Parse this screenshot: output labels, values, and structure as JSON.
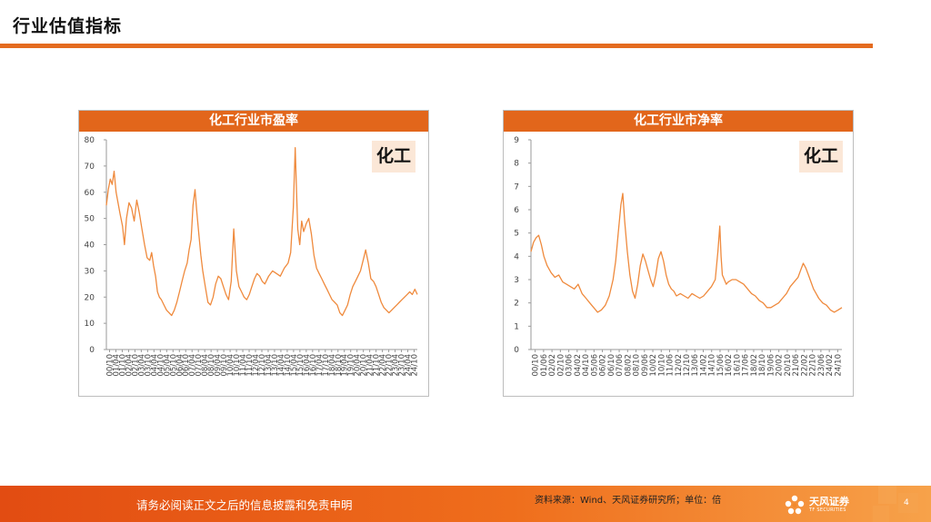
{
  "page": {
    "title": "行业估值指标"
  },
  "colors": {
    "accent": "#e46b1f",
    "line": "#ef8a3d",
    "header": "#e2661b"
  },
  "footer": {
    "disclaimer": "请务必阅读正文之后的信息披露和免责申明",
    "source": "资料来源：Wind、天风证券研究所；单位：倍",
    "logo_cn": "天风证券",
    "logo_en": "TF SECURITIES",
    "page_number": "4"
  },
  "chart_data": [
    {
      "type": "line",
      "title": "化工行业市盈率",
      "tag": "化工",
      "ylim": [
        0,
        80
      ],
      "yticks": [
        0,
        10,
        20,
        30,
        40,
        50,
        60,
        70,
        80
      ],
      "xlim": [
        2000.75,
        2024.79
      ],
      "grid": false,
      "xtick_labels": [
        "00/10",
        "01/04",
        "01/10",
        "02/04",
        "02/10",
        "03/04",
        "03/10",
        "04/04",
        "04/10",
        "05/04",
        "05/10",
        "06/04",
        "06/10",
        "07/04",
        "07/10",
        "08/04",
        "08/10",
        "09/04",
        "09/10",
        "10/04",
        "10/10",
        "11/04",
        "11/10",
        "12/04",
        "12/10",
        "13/04",
        "13/10",
        "14/04",
        "14/10",
        "15/04",
        "15/10",
        "16/04",
        "16/10",
        "17/04",
        "17/10",
        "18/04",
        "18/10",
        "19/04",
        "19/10",
        "20/04",
        "20/10",
        "21/04",
        "21/10",
        "22/04",
        "22/10",
        "23/04",
        "23/10",
        "24/04",
        "24/10"
      ],
      "series": [
        {
          "x": [
            2000.75,
            2000.9,
            2001.05,
            2001.2,
            2001.35,
            2001.5,
            2001.65,
            2001.8,
            2002.0,
            2002.15,
            2002.3,
            2002.5,
            2002.7,
            2002.9,
            2003.1,
            2003.3,
            2003.5,
            2003.7,
            2003.9,
            2004.1,
            2004.25,
            2004.4,
            2004.55,
            2004.7,
            2004.85,
            2005.0,
            2005.2,
            2005.4,
            2005.6,
            2005.8,
            2006.0,
            2006.2,
            2006.4,
            2006.6,
            2006.8,
            2007.0,
            2007.15,
            2007.3,
            2007.45,
            2007.6,
            2007.75,
            2007.9,
            2008.05,
            2008.2,
            2008.4,
            2008.6,
            2008.8,
            2009.0,
            2009.2,
            2009.4,
            2009.6,
            2009.8,
            2010.0,
            2010.2,
            2010.4,
            2010.6,
            2010.8,
            2011.0,
            2011.2,
            2011.4,
            2011.6,
            2011.8,
            2012.0,
            2012.2,
            2012.4,
            2012.6,
            2012.8,
            2013.0,
            2013.3,
            2013.6,
            2013.9,
            2014.2,
            2014.5,
            2014.8,
            2015.0,
            2015.2,
            2015.35,
            2015.45,
            2015.55,
            2015.7,
            2015.85,
            2016.0,
            2016.2,
            2016.4,
            2016.6,
            2016.8,
            2017.0,
            2017.2,
            2017.4,
            2017.6,
            2017.8,
            2018.0,
            2018.2,
            2018.4,
            2018.6,
            2018.8,
            2019.0,
            2019.2,
            2019.4,
            2019.6,
            2019.8,
            2020.0,
            2020.2,
            2020.4,
            2020.6,
            2020.8,
            2021.0,
            2021.2,
            2021.4,
            2021.6,
            2021.8,
            2022.0,
            2022.2,
            2022.4,
            2022.6,
            2022.8,
            2023.0,
            2023.2,
            2023.4,
            2023.6,
            2023.8,
            2024.0,
            2024.2,
            2024.4,
            2024.6,
            2024.79
          ],
          "y": [
            55,
            61,
            65,
            63,
            68,
            60,
            56,
            52,
            47,
            40,
            50,
            56,
            54,
            49,
            57,
            52,
            46,
            40,
            35,
            34,
            37,
            32,
            28,
            22,
            20,
            19,
            17,
            15,
            14,
            13,
            15,
            18,
            22,
            26,
            30,
            33,
            38,
            42,
            55,
            61,
            52,
            44,
            36,
            30,
            24,
            18,
            17,
            20,
            25,
            28,
            27,
            24,
            21,
            19,
            26,
            46,
            30,
            24,
            22,
            20,
            19,
            21,
            24,
            27,
            29,
            28,
            26,
            25,
            28,
            30,
            29,
            28,
            31,
            33,
            37,
            54,
            77,
            61,
            46,
            40,
            49,
            45,
            48,
            50,
            44,
            36,
            31,
            29,
            27,
            25,
            23,
            21,
            19,
            18,
            17,
            14,
            13,
            15,
            17,
            21,
            24,
            26,
            28,
            30,
            34,
            38,
            33,
            27,
            26,
            24,
            21,
            18,
            16,
            15,
            14,
            15,
            16,
            17,
            18,
            19,
            20,
            21,
            22,
            21,
            23,
            21
          ]
        }
      ]
    },
    {
      "type": "line",
      "title": "化工行业市净率",
      "tag": "化工",
      "ylim": [
        0,
        9
      ],
      "yticks": [
        0,
        1,
        2,
        3,
        4,
        5,
        6,
        7,
        8,
        9
      ],
      "xlim": [
        2000.75,
        2024.79
      ],
      "grid": false,
      "xtick_labels": [
        "00/10",
        "01/06",
        "02/02",
        "02/10",
        "03/06",
        "04/02",
        "04/10",
        "05/06",
        "06/02",
        "06/10",
        "07/06",
        "08/02",
        "08/10",
        "09/06",
        "10/02",
        "10/10",
        "11/06",
        "12/02",
        "12/10",
        "13/06",
        "14/02",
        "14/10",
        "15/06",
        "16/02",
        "16/10",
        "17/06",
        "18/02",
        "18/10",
        "19/06",
        "20/02",
        "20/10",
        "21/06",
        "22/02",
        "22/10",
        "23/06",
        "24/02",
        "24/10"
      ],
      "series": [
        {
          "x": [
            2000.75,
            2000.95,
            2001.15,
            2001.35,
            2001.55,
            2001.75,
            2002.0,
            2002.3,
            2002.6,
            2002.9,
            2003.2,
            2003.5,
            2003.8,
            2004.1,
            2004.4,
            2004.7,
            2005.0,
            2005.3,
            2005.6,
            2005.9,
            2006.2,
            2006.5,
            2006.8,
            2007.1,
            2007.3,
            2007.5,
            2007.7,
            2007.85,
            2008.0,
            2008.2,
            2008.4,
            2008.6,
            2008.8,
            2009.0,
            2009.2,
            2009.4,
            2009.6,
            2009.8,
            2010.0,
            2010.2,
            2010.4,
            2010.6,
            2010.8,
            2011.0,
            2011.2,
            2011.4,
            2011.6,
            2011.8,
            2012.0,
            2012.3,
            2012.6,
            2012.9,
            2013.2,
            2013.5,
            2013.8,
            2014.1,
            2014.4,
            2014.7,
            2015.0,
            2015.2,
            2015.35,
            2015.45,
            2015.55,
            2015.7,
            2015.85,
            2016.0,
            2016.3,
            2016.6,
            2016.9,
            2017.2,
            2017.5,
            2017.8,
            2018.1,
            2018.4,
            2018.7,
            2019.0,
            2019.3,
            2019.6,
            2019.9,
            2020.2,
            2020.5,
            2020.8,
            2021.1,
            2021.4,
            2021.6,
            2021.8,
            2022.0,
            2022.2,
            2022.4,
            2022.6,
            2022.8,
            2023.0,
            2023.3,
            2023.6,
            2023.9,
            2024.2,
            2024.5,
            2024.79
          ],
          "y": [
            4.2,
            4.6,
            4.8,
            4.9,
            4.5,
            4.0,
            3.6,
            3.3,
            3.1,
            3.2,
            2.9,
            2.8,
            2.7,
            2.6,
            2.8,
            2.4,
            2.2,
            2.0,
            1.8,
            1.6,
            1.7,
            1.9,
            2.3,
            3.0,
            3.8,
            5.0,
            6.2,
            6.7,
            5.5,
            4.2,
            3.2,
            2.5,
            2.2,
            2.8,
            3.6,
            4.1,
            3.8,
            3.4,
            3.0,
            2.7,
            3.2,
            3.9,
            4.2,
            3.8,
            3.2,
            2.8,
            2.6,
            2.5,
            2.3,
            2.4,
            2.3,
            2.2,
            2.4,
            2.3,
            2.2,
            2.3,
            2.5,
            2.7,
            3.0,
            4.2,
            5.3,
            4.0,
            3.2,
            3.0,
            2.8,
            2.9,
            3.0,
            3.0,
            2.9,
            2.8,
            2.6,
            2.4,
            2.3,
            2.1,
            2.0,
            1.8,
            1.8,
            1.9,
            2.0,
            2.2,
            2.4,
            2.7,
            2.9,
            3.1,
            3.4,
            3.7,
            3.5,
            3.2,
            2.9,
            2.6,
            2.4,
            2.2,
            2.0,
            1.9,
            1.7,
            1.6,
            1.7,
            1.8
          ]
        }
      ]
    }
  ]
}
